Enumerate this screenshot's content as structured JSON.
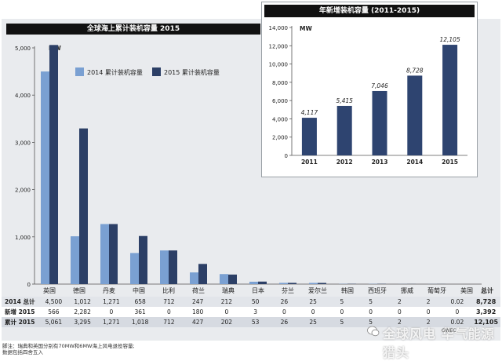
{
  "colors": {
    "series_2014": "#7aa0d2",
    "series_2015": "#2c3f66",
    "inset_bar": "#2e4470"
  },
  "chart_data": [
    {
      "type": "bar",
      "title": "全球海上累计装机容量 2015",
      "unit": "MW",
      "categories": [
        "英国",
        "德国",
        "丹麦",
        "中国",
        "比利",
        "荷兰",
        "瑞典",
        "日本",
        "芬兰",
        "爱尔兰",
        "韩国",
        "西班牙",
        "挪威",
        "葡萄牙",
        "美国"
      ],
      "series": [
        {
          "name": "2014 累计装机容量",
          "values": [
            4500,
            1012,
            1271,
            658,
            712,
            247,
            212,
            50,
            26,
            25,
            5,
            5,
            2,
            2,
            0.02
          ]
        },
        {
          "name": "2015 累计装机容量",
          "values": [
            5061,
            3295,
            1271,
            1018,
            712,
            427,
            202,
            53,
            26,
            25,
            5,
            5,
            2,
            2,
            0.02
          ]
        }
      ],
      "ylim": [
        0,
        5000
      ],
      "yticks": [
        "0",
        "1,000",
        "2,000",
        "3,000",
        "4,000",
        "5,000"
      ],
      "legend_position": "top-left",
      "grid": false
    },
    {
      "type": "bar",
      "title": "年新增装机容量 (2011-2015)",
      "unit": "MW",
      "categories": [
        "2011",
        "2012",
        "2013",
        "2014",
        "2015"
      ],
      "values": [
        4117,
        5415,
        7046,
        8728,
        12105
      ],
      "data_labels": [
        "4,117",
        "5,415",
        "7,046",
        "8,728",
        "12,105"
      ],
      "ylim": [
        0,
        14000
      ],
      "yticks": [
        "0",
        "2,000",
        "4,000",
        "6,000",
        "8,000",
        "10,000",
        "12,000",
        "14,000"
      ],
      "grid": false
    }
  ],
  "table": {
    "total_header": "总计",
    "rows": [
      {
        "label": "2014 总计",
        "cells": [
          "4,500",
          "1,012",
          "1,271",
          "658",
          "712",
          "247",
          "212",
          "50",
          "26",
          "25",
          "5",
          "5",
          "2",
          "2",
          "0.02"
        ],
        "total": "8,728"
      },
      {
        "label": "新增 2015",
        "cells": [
          "566",
          "2,282",
          "0",
          "361",
          "0",
          "180",
          "0",
          "3",
          "0",
          "0",
          "0",
          "0",
          "0",
          "0",
          "0"
        ],
        "total": "3,392"
      },
      {
        "label": "累计 2015",
        "cells": [
          "5,061",
          "3,295",
          "1,271",
          "1,018",
          "712",
          "427",
          "202",
          "53",
          "26",
          "25",
          "5",
          "5",
          "2",
          "2",
          "0.02"
        ],
        "total": "12,105"
      }
    ]
  },
  "footnote": {
    "line1": "脚注：瑞典和英国分别有70MW和6MW海上风电退役容量;",
    "line2": "数据包括四舍五入"
  },
  "watermark": "全球风电   华气能源猎头",
  "source": "GWEC"
}
